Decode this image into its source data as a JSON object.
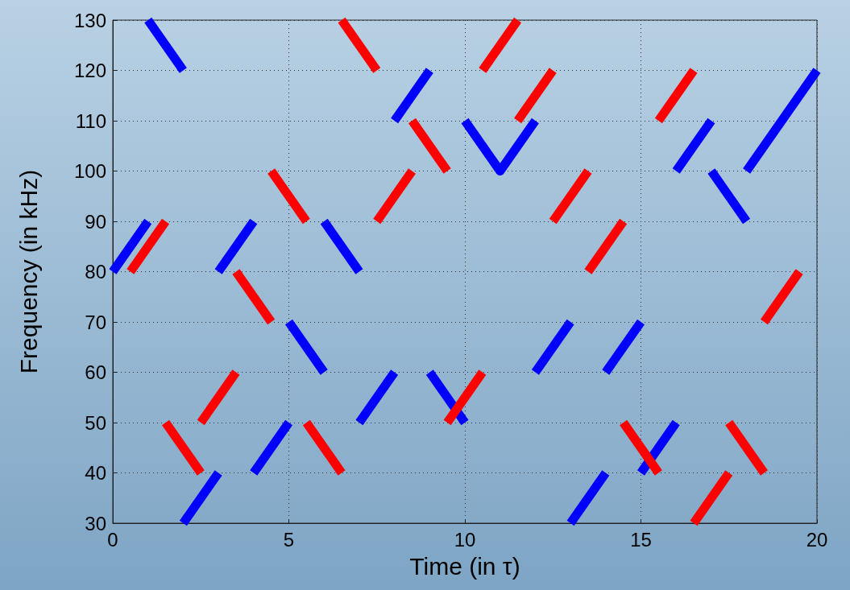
{
  "chart_data": {
    "type": "line",
    "xlabel": "Time (in τ)",
    "ylabel": "Frequency (in kHz)",
    "xlim": [
      0,
      20
    ],
    "ylim": [
      30,
      130
    ],
    "xticks": [
      0,
      5,
      10,
      15,
      20
    ],
    "yticks": [
      30,
      40,
      50,
      60,
      70,
      80,
      90,
      100,
      110,
      120,
      130
    ],
    "grid": true,
    "series": [
      {
        "color": "#0000ff",
        "x": [
          0,
          1,
          null,
          1,
          2,
          null,
          2,
          3,
          null,
          3,
          4,
          null,
          4,
          5,
          null,
          5,
          6,
          null,
          6,
          7,
          null,
          7,
          8,
          null,
          8,
          9,
          null,
          9,
          10,
          null,
          10,
          11,
          12,
          null,
          12,
          13,
          null,
          13,
          14,
          null,
          14,
          15,
          null,
          15,
          16,
          null,
          16,
          17,
          null,
          17,
          18,
          null,
          18,
          20
        ],
        "values": [
          80,
          90,
          null,
          130,
          120,
          null,
          30,
          40,
          null,
          80,
          90,
          null,
          40,
          50,
          null,
          70,
          60,
          null,
          90,
          80,
          null,
          50,
          60,
          null,
          110,
          120,
          null,
          60,
          50,
          null,
          110,
          100,
          110,
          null,
          60,
          70,
          null,
          30,
          40,
          null,
          60,
          70,
          null,
          40,
          50,
          null,
          100,
          110,
          null,
          100,
          90,
          null,
          100,
          120
        ]
      },
      {
        "color": "#ff0000",
        "x": [
          0.5,
          1.5,
          null,
          1.5,
          2.5,
          null,
          2.5,
          3.5,
          null,
          3.5,
          4.5,
          null,
          4.5,
          5.5,
          null,
          5.5,
          6.5,
          null,
          6.5,
          7.5,
          null,
          7.5,
          8.5,
          null,
          8.5,
          9.5,
          null,
          9.5,
          10.5,
          null,
          10.5,
          11.5,
          null,
          11.5,
          12.5,
          null,
          12.5,
          13.5,
          null,
          13.5,
          14.5,
          null,
          14.5,
          15.5,
          null,
          15.5,
          16.5,
          null,
          16.5,
          17.5,
          null,
          17.5,
          18.5,
          null,
          18.5,
          19.5
        ],
        "values": [
          80,
          90,
          null,
          50,
          40,
          null,
          50,
          60,
          null,
          80,
          70,
          null,
          100,
          90,
          null,
          50,
          40,
          null,
          130,
          120,
          null,
          90,
          100,
          null,
          110,
          100,
          null,
          50,
          60,
          null,
          120,
          130,
          null,
          110,
          120,
          null,
          90,
          100,
          null,
          80,
          90,
          null,
          50,
          40,
          null,
          110,
          120,
          null,
          30,
          40,
          null,
          50,
          40,
          null,
          70,
          80
        ]
      }
    ]
  }
}
